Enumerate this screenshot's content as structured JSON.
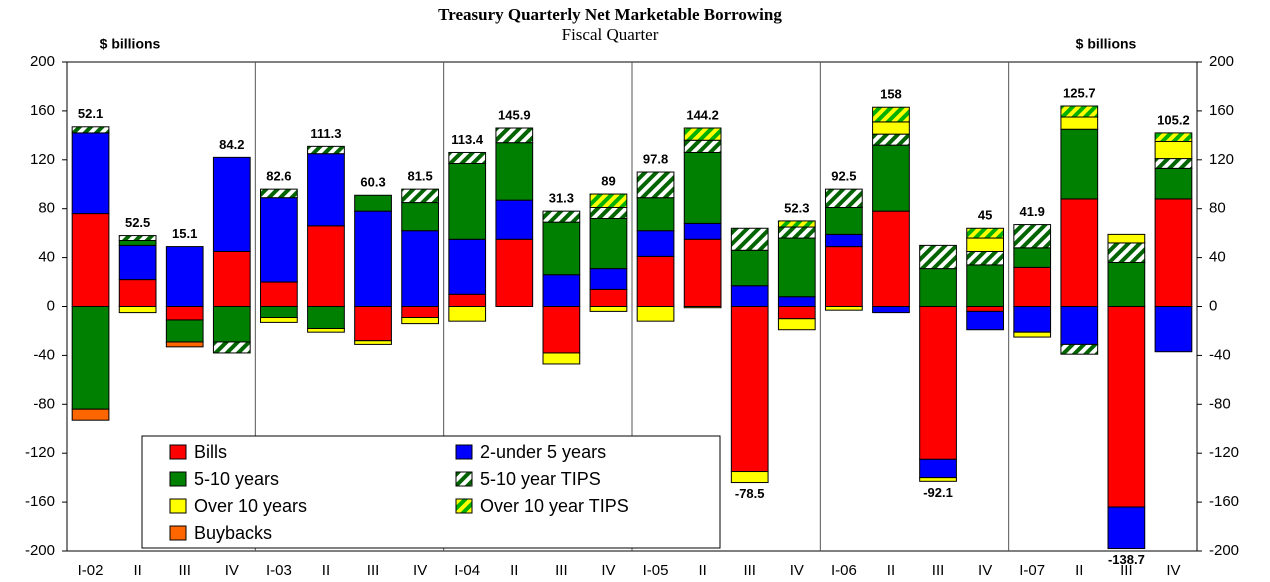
{
  "chart_data": {
    "type": "stacked-bar",
    "title": "Treasury Quarterly Net Marketable Borrowing",
    "subtitle": "Fiscal Quarter",
    "y_axis_label": "$ billions",
    "categories": [
      "I-02",
      "II",
      "III",
      "IV",
      "I-03",
      "II",
      "III",
      "IV",
      "I-04",
      "II",
      "III",
      "IV",
      "I-05",
      "II",
      "III",
      "IV",
      "I-06",
      "II",
      "III",
      "IV",
      "I-07",
      "II",
      "III",
      "IV"
    ],
    "series": [
      {
        "name": "Bills",
        "color": "#ff0000",
        "values": [
          76,
          22,
          -11,
          45,
          20,
          66,
          -28,
          -9,
          10,
          55,
          -38,
          14,
          41,
          55,
          -135,
          -10,
          49,
          78,
          -125,
          -4,
          32,
          88,
          -164,
          88
        ]
      },
      {
        "name": "2-under 5 years",
        "color": "#0000ff",
        "values": [
          66,
          28,
          49,
          77,
          69,
          59,
          78,
          62,
          45,
          32,
          26,
          17,
          21,
          13,
          17,
          8,
          10,
          -5,
          -15,
          -15,
          -21,
          -31,
          -34,
          -37
        ]
      },
      {
        "name": "5-10 years",
        "color": "#008000",
        "values": [
          -84,
          4,
          -18,
          -29,
          -9,
          -18,
          13,
          23,
          62,
          47,
          43,
          41,
          27,
          58,
          29,
          48,
          22,
          54,
          31,
          34,
          16,
          57,
          36,
          25
        ]
      },
      {
        "name": "5-10 year TIPS",
        "color": "#006400",
        "hatch": "#ffffff",
        "values": [
          5,
          4,
          0,
          -9,
          7,
          6,
          0,
          11,
          9,
          12,
          9,
          9,
          21,
          10,
          18,
          9,
          15,
          9,
          19,
          11,
          19,
          -8,
          16,
          8
        ]
      },
      {
        "name": "Over 10 years",
        "color": "#ffff00",
        "values": [
          0,
          -5,
          0,
          0,
          -4,
          -3,
          -3,
          -5,
          -12,
          0,
          -9,
          -4,
          -12,
          -1,
          -9,
          -9,
          -3,
          10,
          -3,
          11,
          -4,
          10,
          7,
          14
        ]
      },
      {
        "name": "Over 10 year TIPS",
        "color": "#00b000",
        "hatch": "#ffff00",
        "values": [
          0,
          0,
          0,
          0,
          0,
          0,
          0,
          0,
          0,
          0,
          0,
          11,
          0,
          10,
          0,
          5,
          0,
          12,
          0,
          8,
          0,
          9,
          0,
          7
        ]
      },
      {
        "name": "Buybacks",
        "color": "#ff6600",
        "values": [
          -9,
          0,
          -4,
          0,
          0,
          0,
          0,
          0,
          0,
          0,
          0,
          0,
          0,
          0,
          0,
          0,
          0,
          0,
          0,
          0,
          0,
          0,
          0,
          0
        ]
      }
    ],
    "totals": [
      52.1,
      52.5,
      15.1,
      84.2,
      82.6,
      111.3,
      60.3,
      81.5,
      113.4,
      145.9,
      31.3,
      89.0,
      97.8,
      144.2,
      -78.5,
      52.3,
      92.5,
      158.0,
      -92.1,
      45.0,
      41.9,
      125.7,
      -138.7,
      105.2
    ],
    "ylim": [
      -200,
      200
    ],
    "yticks": [
      -200,
      -160,
      -120,
      -80,
      -40,
      0,
      40,
      80,
      120,
      160,
      200
    ],
    "legend": "lower-left"
  }
}
